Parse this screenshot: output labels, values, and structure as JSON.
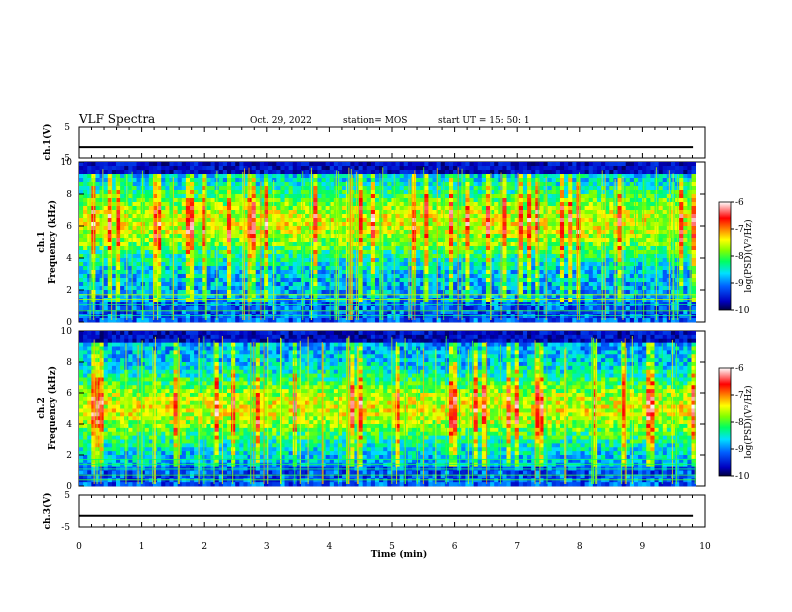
{
  "header": {
    "title": "VLF Spectra",
    "date": "Oct. 29, 2022",
    "station": "station= MOS",
    "start": "start  UT  =   15: 50: 1"
  },
  "chart_data": [
    {
      "type": "line",
      "panel": "ch1-waveform",
      "ylabel": "ch.1(V)",
      "ylim": [
        -5,
        5
      ],
      "yticks": [
        "5",
        "-5"
      ],
      "series_value": -1.5,
      "xlim": [
        0,
        10
      ]
    },
    {
      "type": "heatmap",
      "panel": "ch1-spectrogram",
      "ylabel": "ch.1\nFrequency (kHz)",
      "ylabel_lines": [
        "ch.1",
        "Frequency (kHz)"
      ],
      "ylim": [
        0,
        10
      ],
      "yticks": [
        "0",
        "2",
        "4",
        "6",
        "8",
        "10"
      ],
      "xlim": [
        0,
        9.85
      ],
      "colorbar": {
        "label": "log(PSD)(V²/Hz)",
        "ticks": [
          "-6",
          "-7",
          "-8",
          "-9",
          "-10"
        ],
        "range": [
          -10,
          -6
        ]
      }
    },
    {
      "type": "heatmap",
      "panel": "ch2-spectrogram",
      "ylabel": "ch.2\nFrequency (kHz)",
      "ylabel_lines": [
        "ch.2",
        "Frequency (kHz)"
      ],
      "ylim": [
        0,
        10
      ],
      "yticks": [
        "0",
        "2",
        "4",
        "6",
        "8",
        "10"
      ],
      "xlim": [
        0,
        9.85
      ],
      "colorbar": {
        "label": "log(PSD)(V²/Hz)",
        "ticks": [
          "-6",
          "-7",
          "-8",
          "-9",
          "-10"
        ],
        "range": [
          -10,
          -6
        ]
      }
    },
    {
      "type": "line",
      "panel": "ch3-waveform",
      "ylabel": "ch.3(V)",
      "ylim": [
        -5,
        5
      ],
      "yticks": [
        "5",
        "-5"
      ],
      "series_value": -1.5,
      "xlim": [
        0,
        10
      ]
    }
  ],
  "xaxis": {
    "label": "Time (min)",
    "ticks": [
      "0",
      "1",
      "2",
      "3",
      "4",
      "5",
      "6",
      "7",
      "8",
      "9",
      "10"
    ],
    "range": [
      0,
      10
    ]
  },
  "colors": {
    "background": "#000000",
    "colormap": [
      "#000080",
      "#0000ff",
      "#00a0ff",
      "#00ffff",
      "#00ff80",
      "#80ff00",
      "#ffff00",
      "#ff8000",
      "#ff0000",
      "#ffffff"
    ]
  }
}
